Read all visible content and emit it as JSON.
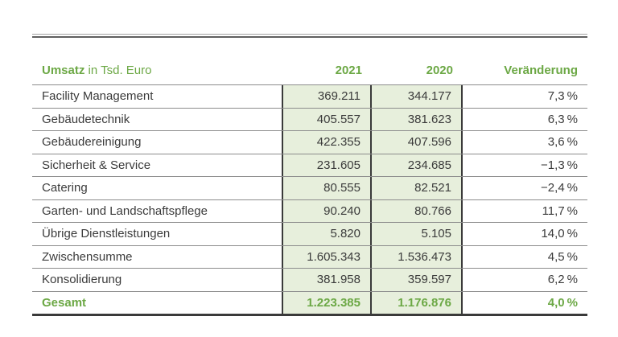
{
  "colors": {
    "accent_green": "#6ca845",
    "cell_green_bg": "#e7efdc",
    "border_dark": "#3a3a3a",
    "row_line": "#8c8c8c",
    "text_dark": "#3b3b3b"
  },
  "table": {
    "title_bold": "Umsatz",
    "title_rest": " in Tsd. Euro",
    "columns": [
      "2021",
      "2020",
      "Veränderung"
    ],
    "rows": [
      {
        "label": "Facility Management",
        "v2021": "369.211",
        "v2020": "344.177",
        "change": "7,3 %",
        "emphasis": false
      },
      {
        "label": "Gebäudetechnik",
        "v2021": "405.557",
        "v2020": "381.623",
        "change": "6,3 %",
        "emphasis": false
      },
      {
        "label": "Gebäudereinigung",
        "v2021": "422.355",
        "v2020": "407.596",
        "change": "3,6 %",
        "emphasis": false
      },
      {
        "label": "Sicherheit & Service",
        "v2021": "231.605",
        "v2020": "234.685",
        "change": "−1,3 %",
        "emphasis": false
      },
      {
        "label": "Catering",
        "v2021": "80.555",
        "v2020": "82.521",
        "change": "−2,4 %",
        "emphasis": false
      },
      {
        "label": "Garten- und Landschaftspflege",
        "v2021": "90.240",
        "v2020": "80.766",
        "change": "11,7 %",
        "emphasis": false
      },
      {
        "label": "Übrige Dienstleistungen",
        "v2021": "5.820",
        "v2020": "5.105",
        "change": "14,0 %",
        "emphasis": false
      },
      {
        "label": "Zwischensumme",
        "v2021": "1.605.343",
        "v2020": "1.536.473",
        "change": "4,5 %",
        "emphasis": false
      },
      {
        "label": "Konsolidierung",
        "v2021": "381.958",
        "v2020": "359.597",
        "change": "6,2 %",
        "emphasis": false
      },
      {
        "label": "Gesamt",
        "v2021": "1.223.385",
        "v2020": "1.176.876",
        "change": "4,0 %",
        "emphasis": true
      }
    ]
  },
  "chart_data": {
    "type": "table",
    "title": "Umsatz in Tsd. Euro",
    "columns": [
      "2021",
      "2020",
      "Veränderung"
    ],
    "rows": [
      {
        "label": "Facility Management",
        "y2021": 369211,
        "y2020": 344177,
        "change_pct": 7.3
      },
      {
        "label": "Gebäudetechnik",
        "y2021": 405557,
        "y2020": 381623,
        "change_pct": 6.3
      },
      {
        "label": "Gebäudereinigung",
        "y2021": 422355,
        "y2020": 407596,
        "change_pct": 3.6
      },
      {
        "label": "Sicherheit & Service",
        "y2021": 231605,
        "y2020": 234685,
        "change_pct": -1.3
      },
      {
        "label": "Catering",
        "y2021": 80555,
        "y2020": 82521,
        "change_pct": -2.4
      },
      {
        "label": "Garten- und Landschaftspflege",
        "y2021": 90240,
        "y2020": 80766,
        "change_pct": 11.7
      },
      {
        "label": "Übrige Dienstleistungen",
        "y2021": 5820,
        "y2020": 5105,
        "change_pct": 14.0
      },
      {
        "label": "Zwischensumme",
        "y2021": 1605343,
        "y2020": 1536473,
        "change_pct": 4.5
      },
      {
        "label": "Konsolidierung",
        "y2021": 381958,
        "y2020": 359597,
        "change_pct": 6.2
      },
      {
        "label": "Gesamt",
        "y2021": 1223385,
        "y2020": 1176876,
        "change_pct": 4.0
      }
    ]
  }
}
